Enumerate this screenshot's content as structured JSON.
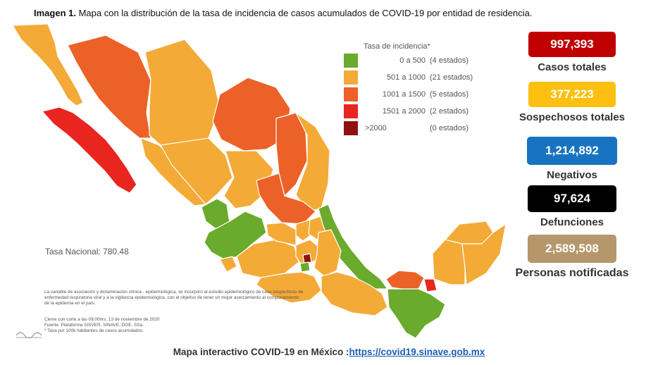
{
  "header": {
    "title_bold": "Imagen 1.",
    "title_text": "Mapa con la distribución de la tasa de incidencia de casos acumulados de COVID-19 por entidad de residencia."
  },
  "legend": {
    "title": "Tasa de incidencia*",
    "items": [
      {
        "range": "0 a   500",
        "count": "(4 estados)",
        "color": "#6aaa2c"
      },
      {
        "range": "501 a  1000",
        "count": "(21 estados)",
        "color": "#f4aa37"
      },
      {
        "range": "1001 a   1500",
        "count": "(5 estados)",
        "color": "#ec6128"
      },
      {
        "range": "1501 a  2000",
        "count": "(2 estados)",
        "color": "#e8251e"
      },
      {
        "range": ">2000",
        "count": "(0 estados)",
        "color": "#8e1212"
      }
    ]
  },
  "national_rate": "Tasa Nacional: 780.48",
  "notes": {
    "methodology": "La variable de asociación y dictaminación clínica - epidemiológica, se incorporó al estudio epidemiológico de caso sospechoso de enfermedad respiratoria viral y a la vigilancia epidemiológica, con el objetivo de tener un mejor acercamiento al comportamiento de la epidemia en el país.",
    "cutoff": "Cierre con corte a las 09:00hrs, 13 de noviembre de 2020",
    "source": "Fuente: Plataforma SISVER, SINAVE, DGE, SSa.",
    "rate_note": "* Tasa por 100k habitantes de casos acumulados."
  },
  "stats": [
    {
      "value": "997,393",
      "label": "Casos totales",
      "color": "#c00000"
    },
    {
      "value": "377,223",
      "label": "Sospechosos totales",
      "color": "#fdc010"
    },
    {
      "value": "1,214,892",
      "label": "Negativos",
      "color": "#1874c2"
    },
    {
      "value": "97,624",
      "label": "Defunciones",
      "color": "#000000"
    },
    {
      "value": "2,589,508",
      "label": "Personas notificadas",
      "color": "#b5976b"
    }
  ],
  "footer": {
    "text": "Mapa interactivo COVID-19 en México :",
    "link": "https://covid19.sinave.gob.mx"
  }
}
